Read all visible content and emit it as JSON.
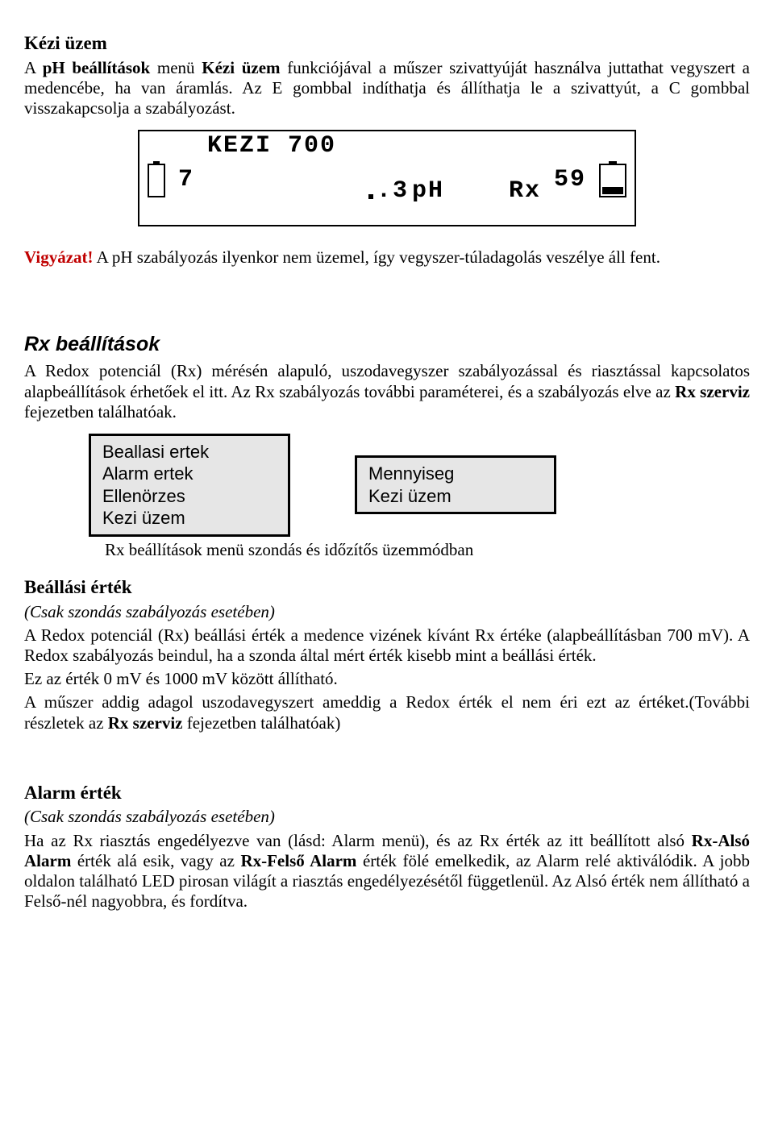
{
  "kezi_uzem": {
    "title": "Kézi üzem",
    "para_parts": [
      {
        "t": "A ",
        "b": false
      },
      {
        "t": "pH beállítások",
        "b": true
      },
      {
        "t": " menü ",
        "b": false
      },
      {
        "t": "Kézi üzem",
        "b": true
      },
      {
        "t": " funkciójával a műszer szivattyúját használva juttathat vegyszert a medencébe, ha van áramlás. Az E gombbal indíthatja és állíthatja le a szivattyút, a C gombbal visszakapcsolja a szabályozást.",
        "b": false
      }
    ]
  },
  "lcd": {
    "row1_left_big": "7",
    "row1_text": "KEZI 700",
    "row2_left_dot": ".3",
    "row2_text": "pH    Rx",
    "row1_right_big": "59"
  },
  "warning": {
    "label": "Vigyázat!",
    "text": " A pH szabályozás ilyenkor nem üzemel, így vegyszer-túladagolás veszélye áll fent."
  },
  "rx": {
    "title": "Rx beállítások",
    "intro_parts": [
      {
        "t": "A Redox potenciál (Rx) mérésén alapuló, uszodavegyszer szabályozással és riasztással kapcsolatos alapbeállítások érhetőek el itt. Az Rx szabályozás további paraméterei, és a szabályozás elve az ",
        "b": false
      },
      {
        "t": "Rx szerviz",
        "b": true
      },
      {
        "t": " fejezetben találhatóak.",
        "b": false
      }
    ]
  },
  "menus": {
    "left": [
      "Beallasi ertek",
      "Alarm ertek",
      "Ellenörzes",
      "Kezi üzem"
    ],
    "right": [
      "Mennyiseg",
      "Kezi üzem"
    ],
    "caption": "Rx beállítások menü szondás és időzítős üzemmódban"
  },
  "beall": {
    "title": "Beállási érték",
    "subtitle": "(Csak szondás szabályozás esetében)",
    "p1": "A Redox potenciál (Rx) beállási érték a medence vizének kívánt Rx értéke (alapbeállításban 700 mV). A Redox szabályozás beindul, ha a szonda által mért érték kisebb mint a beállási érték.",
    "p2": "Ez az érték 0 mV és 1000 mV között állítható.",
    "p3_parts": [
      {
        "t": "A műszer addig adagol uszodavegyszert ameddig a Redox érték el nem éri ezt az értéket.(További részletek az ",
        "b": false
      },
      {
        "t": "Rx szerviz",
        "b": true
      },
      {
        "t": " fejezetben találhatóak)",
        "b": false
      }
    ]
  },
  "alarm": {
    "title": "Alarm érték",
    "subtitle": "(Csak szondás szabályozás esetében)",
    "p_parts": [
      {
        "t": "Ha az Rx riasztás engedélyezve van (lásd: Alarm menü), és az Rx érték az itt beállított alsó ",
        "b": false
      },
      {
        "t": "Rx-Alsó Alarm",
        "b": true
      },
      {
        "t": " érték alá esik, vagy az ",
        "b": false
      },
      {
        "t": "Rx-Felső Alarm",
        "b": true
      },
      {
        "t": " érték fölé emelkedik, az Alarm relé aktiválódik. A jobb oldalon található LED pirosan világít a riasztás engedélyezésétől függetlenül. Az Alsó érték nem állítható a Felső-nél nagyobbra, és fordítva.",
        "b": false
      }
    ]
  },
  "colors": {
    "warn": "#c00000",
    "menu_bg": "#e6e6e6"
  }
}
